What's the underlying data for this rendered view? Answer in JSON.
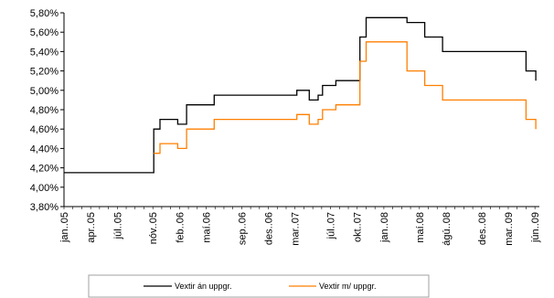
{
  "chart_data": {
    "type": "line",
    "step": true,
    "title": "",
    "xlabel": "",
    "ylabel": "",
    "ylim": [
      3.8,
      5.8
    ],
    "y_ticks": [
      "3,80%",
      "4,00%",
      "4,20%",
      "4,40%",
      "4,60%",
      "4,80%",
      "5,00%",
      "5,20%",
      "5,40%",
      "5,60%",
      "5,80%"
    ],
    "x_ticks": [
      "jan..05",
      "apr..05",
      "júl..05",
      "nóv..05",
      "feb..06",
      "maí.06",
      "sep..06",
      "des..06",
      "mar..07",
      "júl..07",
      "okt..07",
      "jan..08",
      "maí.08",
      "ágú..08",
      "des..08",
      "mar..09",
      "jún..09"
    ],
    "x_tick_months": [
      0,
      3,
      6,
      10,
      13,
      16,
      20,
      23,
      26,
      30,
      33,
      36,
      40,
      43,
      47,
      50,
      53
    ],
    "xlim_months": [
      0,
      53.5
    ],
    "x_start": "jan. 2005",
    "grid": false,
    "legend_position": "bottom",
    "series": [
      {
        "name": "Vextir án uppgr.",
        "color": "#000000",
        "points": [
          [
            0,
            4.15
          ],
          [
            10.1,
            4.15
          ],
          [
            10.1,
            4.6
          ],
          [
            10.8,
            4.6
          ],
          [
            10.8,
            4.7
          ],
          [
            12.8,
            4.7
          ],
          [
            12.8,
            4.65
          ],
          [
            13.8,
            4.65
          ],
          [
            13.8,
            4.85
          ],
          [
            16.9,
            4.85
          ],
          [
            16.9,
            4.95
          ],
          [
            26.2,
            4.95
          ],
          [
            26.2,
            5.0
          ],
          [
            27.6,
            5.0
          ],
          [
            27.6,
            4.9
          ],
          [
            28.6,
            4.9
          ],
          [
            28.6,
            4.95
          ],
          [
            29.1,
            4.95
          ],
          [
            29.1,
            5.05
          ],
          [
            30.6,
            5.05
          ],
          [
            30.6,
            5.1
          ],
          [
            33.3,
            5.1
          ],
          [
            33.3,
            5.55
          ],
          [
            34.0,
            5.55
          ],
          [
            34.0,
            5.75
          ],
          [
            38.6,
            5.75
          ],
          [
            38.6,
            5.7
          ],
          [
            40.6,
            5.7
          ],
          [
            40.6,
            5.55
          ],
          [
            42.6,
            5.55
          ],
          [
            42.6,
            5.4
          ],
          [
            52.0,
            5.4
          ],
          [
            52.0,
            5.2
          ],
          [
            53.1,
            5.2
          ],
          [
            53.1,
            5.1
          ]
        ]
      },
      {
        "name": "Vextir m/ uppgr.",
        "color": "#ff7f00",
        "points": [
          [
            10.1,
            4.35
          ],
          [
            10.8,
            4.35
          ],
          [
            10.8,
            4.45
          ],
          [
            12.8,
            4.45
          ],
          [
            12.8,
            4.4
          ],
          [
            13.8,
            4.4
          ],
          [
            13.8,
            4.6
          ],
          [
            16.9,
            4.6
          ],
          [
            16.9,
            4.7
          ],
          [
            26.2,
            4.7
          ],
          [
            26.2,
            4.75
          ],
          [
            27.6,
            4.75
          ],
          [
            27.6,
            4.65
          ],
          [
            28.6,
            4.65
          ],
          [
            28.6,
            4.7
          ],
          [
            29.1,
            4.7
          ],
          [
            29.1,
            4.8
          ],
          [
            30.6,
            4.8
          ],
          [
            30.6,
            4.85
          ],
          [
            33.3,
            4.85
          ],
          [
            33.3,
            5.3
          ],
          [
            34.0,
            5.3
          ],
          [
            34.0,
            5.5
          ],
          [
            38.6,
            5.5
          ],
          [
            38.6,
            5.2
          ],
          [
            40.6,
            5.2
          ],
          [
            40.6,
            5.05
          ],
          [
            42.6,
            5.05
          ],
          [
            42.6,
            4.9
          ],
          [
            52.0,
            4.9
          ],
          [
            52.0,
            4.7
          ],
          [
            53.1,
            4.7
          ],
          [
            53.1,
            4.6
          ]
        ]
      }
    ]
  },
  "legend": {
    "items": [
      {
        "label": "Vextir án uppgr.",
        "color": "#000000"
      },
      {
        "label": "Vextir m/ uppgr.",
        "color": "#ff7f00"
      }
    ]
  }
}
